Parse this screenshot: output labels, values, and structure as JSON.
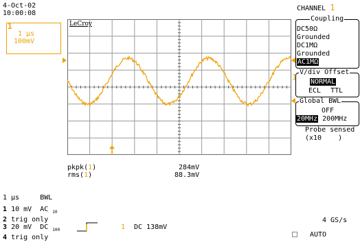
{
  "date": "4-Oct-02",
  "time": "10:00:08",
  "trace_box": {
    "number": "1",
    "timebase": "1 µs",
    "volts": "100mV"
  },
  "brand": "LeCroy",
  "colors": {
    "trace": "#f0a000",
    "grid": "#6b6b6b",
    "ink": "#000000"
  },
  "right_panel": {
    "channel_label": "CHANNEL",
    "channel_number": "1",
    "coupling": {
      "title": "Coupling",
      "options": [
        "DC50Ω",
        "Grounded",
        "DC1MΩ",
        "Grounded",
        "AC1MΩ"
      ],
      "selected": "AC1MΩ"
    },
    "vdiv": {
      "title": "V/div Offset",
      "selected": "NORMAL",
      "option_ecl": "ECL",
      "option_ttl": "TTL"
    },
    "bwl": {
      "title": "Global BWL",
      "off": "OFF",
      "selected": "20MHz",
      "other": "200MHz"
    },
    "probe": {
      "line1": "Probe sensed",
      "line2": "(x10    )"
    }
  },
  "marker": "1",
  "measurements": {
    "row1": {
      "label": "pkpk(",
      "num": "1",
      "close": ")",
      "value": "284mV"
    },
    "row2": {
      "label": "rms(",
      "num": "1",
      "close": ")",
      "value": "88.3mV"
    }
  },
  "bottom": {
    "timebase": "1 µs",
    "bwl": "BWL",
    "ch1": {
      "num": "1",
      "text": "10 mV  AC",
      "sub": "10"
    },
    "ch2": {
      "num": "2",
      "text": "trig only"
    },
    "ch3": {
      "num": "3",
      "text": "20 mV  DC",
      "sub": "100"
    },
    "ch4": {
      "num": "4",
      "text": "trig only"
    },
    "trigger": {
      "num": "1",
      "text": "DC 138mV"
    },
    "sample_rate": "4 GS/s",
    "mode": "AUTO"
  }
}
